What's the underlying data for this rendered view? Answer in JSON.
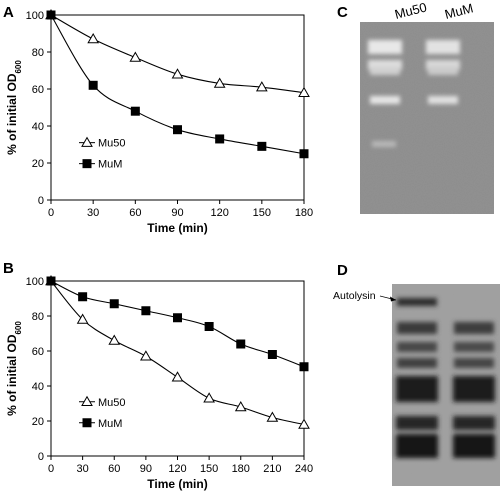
{
  "figure": {
    "panels": {
      "a": "A",
      "b": "B",
      "c": "C",
      "d": "D"
    },
    "gel_c": {
      "lanes": [
        "Mu50",
        "MuM"
      ],
      "background": "#8a8a8a"
    },
    "gel_d": {
      "annotation": "Autolysin",
      "background": "#9a9a9a"
    }
  },
  "chart_data": [
    {
      "type": "line",
      "panel": "A",
      "ylabel": "% of initial OD",
      "ylabel_subscript": "600",
      "xlabel": "Time (min)",
      "ylim": [
        0,
        100
      ],
      "xlim": [
        0,
        180
      ],
      "xticks": [
        "0",
        "30",
        "60",
        "90",
        "120",
        "150",
        "180"
      ],
      "yticks": [
        "0",
        "20",
        "40",
        "60",
        "80",
        "100"
      ],
      "legend_position": "lower-left",
      "series": [
        {
          "name": "Mu50",
          "marker": "open-triangle",
          "x": [
            0,
            30,
            60,
            90,
            120,
            150,
            180
          ],
          "y": [
            100,
            87,
            77,
            68,
            63,
            61,
            58
          ]
        },
        {
          "name": "MuM",
          "marker": "filled-square",
          "x": [
            0,
            30,
            60,
            90,
            120,
            150,
            180
          ],
          "y": [
            100,
            62,
            48,
            38,
            33,
            29,
            25
          ]
        }
      ]
    },
    {
      "type": "line",
      "panel": "B",
      "ylabel": "% of initial OD",
      "ylabel_subscript": "600",
      "xlabel": "Time (min)",
      "ylim": [
        0,
        100
      ],
      "xlim": [
        0,
        240
      ],
      "xticks": [
        "0",
        "30",
        "60",
        "90",
        "120",
        "150",
        "180",
        "210",
        "240"
      ],
      "yticks": [
        "0",
        "20",
        "40",
        "60",
        "80",
        "100"
      ],
      "legend_position": "lower-left",
      "series": [
        {
          "name": "Mu50",
          "marker": "open-triangle",
          "x": [
            0,
            30,
            60,
            90,
            120,
            150,
            180,
            210,
            240
          ],
          "y": [
            100,
            78,
            66,
            57,
            45,
            33,
            28,
            22,
            18
          ]
        },
        {
          "name": "MuM",
          "marker": "filled-square",
          "x": [
            0,
            30,
            60,
            90,
            120,
            150,
            180,
            210,
            240
          ],
          "y": [
            100,
            91,
            87,
            83,
            79,
            74,
            64,
            58,
            51
          ]
        }
      ]
    }
  ]
}
